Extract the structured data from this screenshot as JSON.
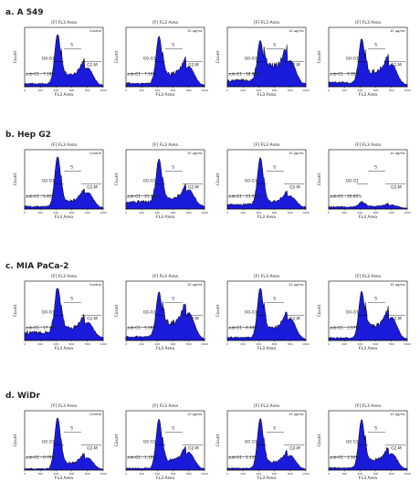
{
  "chart_data": {
    "type": "histogram",
    "panel_title": "[F] FL3 Area",
    "xlabel": "FL3 Area",
    "ylabel": "Count",
    "x_ticks": [
      0,
      200,
      400,
      600,
      800,
      1000
    ],
    "phase_labels": {
      "g0g1": "G0-G1",
      "s": "S",
      "g2m": "G2-M",
      "subg1": "sub-G1"
    },
    "rows": [
      {
        "label": "a. A 549",
        "panels": [
          {
            "condition": "Control",
            "subg1": "7.18%",
            "sub_prefix": "sub-G1 :",
            "g0_label": "G0-G1",
            "g1_peak": 1.0,
            "g2_peak": 0.34,
            "sub_level": 0.06,
            "s_level": 0.24
          },
          {
            "condition": "10 µg/mL",
            "subg1": "7.16%",
            "sub_prefix": "sub-G1 :",
            "g0_label": "G0-G1",
            "g1_peak": 0.95,
            "g2_peak": 0.36,
            "sub_level": 0.07,
            "s_level": 0.26
          },
          {
            "condition": "10 µg/mL",
            "subg1": "18.94%",
            "sub_prefix": "sub-G1 :",
            "g0_label": "G0-G1",
            "g1_peak": 0.85,
            "g2_peak": 0.46,
            "sub_level": 0.14,
            "s_level": 0.42
          },
          {
            "condition": "10 µg/mL",
            "subg1": "9.95%",
            "sub_prefix": "sub-G1 :",
            "g0_label": "G0-G1",
            "g1_peak": 0.9,
            "g2_peak": 0.4,
            "sub_level": 0.09,
            "s_level": 0.3
          }
        ]
      },
      {
        "label": "b. Hep G2",
        "panels": [
          {
            "condition": "Control",
            "subg1": "5.42%",
            "sub_prefix": "sub-G1 :",
            "g0_label": "G0-G1",
            "g1_peak": 1.0,
            "g2_peak": 0.3,
            "sub_level": 0.05,
            "s_level": 0.16
          },
          {
            "condition": "10 µg/mL",
            "subg1": "21.74%",
            "sub_prefix": "sub-G1 :",
            "g0_label": "G0-G1",
            "g1_peak": 0.92,
            "g2_peak": 0.32,
            "sub_level": 0.16,
            "s_level": 0.18
          },
          {
            "condition": "10 µg/mL",
            "subg1": "13.70%",
            "sub_prefix": "sub-G1 :",
            "g0_label": "G0-G1",
            "g1_peak": 0.96,
            "g2_peak": 0.22,
            "sub_level": 0.1,
            "s_level": 0.14
          },
          {
            "condition": "10 µg/mL",
            "subg1": "20.08%",
            "sub_prefix": "sub-G1 :",
            "g0_label": "G0-G1",
            "g1_peak": 0.12,
            "g2_peak": 0.06,
            "sub_level": 0.04,
            "s_level": 0.04
          }
        ]
      },
      {
        "label": "c. MIA PaCa-2",
        "panels": [
          {
            "condition": "Control",
            "subg1": "17.74%",
            "sub_prefix": "sub-G1 :",
            "g0_label": "G0-G1",
            "g1_peak": 1.0,
            "g2_peak": 0.3,
            "sub_level": 0.18,
            "s_level": 0.22
          },
          {
            "condition": "10 µg/mL",
            "subg1": "5.06%",
            "sub_prefix": "sub-G1 :",
            "g0_label": "G0-G1",
            "g1_peak": 0.9,
            "g2_peak": 0.5,
            "sub_level": 0.08,
            "s_level": 0.36
          },
          {
            "condition": "10 µg/mL",
            "subg1": "4.44%",
            "sub_prefix": "sub-G1 :",
            "g0_label": "G0-G1",
            "g1_peak": 1.0,
            "g2_peak": 0.4,
            "sub_level": 0.06,
            "s_level": 0.26
          },
          {
            "condition": "10 µg/mL",
            "subg1": "3.57%",
            "sub_prefix": "sub-G1 :",
            "g0_label": "G0-G1",
            "g1_peak": 0.92,
            "g2_peak": 0.42,
            "sub_level": 0.05,
            "s_level": 0.3
          }
        ]
      },
      {
        "label": "d. WiDr",
        "panels": [
          {
            "condition": "Control",
            "subg1": "0.78%",
            "sub_prefix": "sub-G1 :",
            "g0_label": "G0 G1",
            "g1_peak": 1.0,
            "g2_peak": 0.22,
            "sub_level": 0.02,
            "s_level": 0.14
          },
          {
            "condition": "10 µg/mL",
            "subg1": "1.10%",
            "sub_prefix": "sub-G1 :",
            "g0_label": "G0 G1",
            "g1_peak": 0.96,
            "g2_peak": 0.32,
            "sub_level": 0.03,
            "s_level": 0.2
          },
          {
            "condition": "10 µg/mL",
            "subg1": "1.13%",
            "sub_prefix": "sub-G1 :",
            "g0_label": "G0 G1",
            "g1_peak": 0.98,
            "g2_peak": 0.26,
            "sub_level": 0.03,
            "s_level": 0.16
          },
          {
            "condition": "10 µg/mL",
            "subg1": "1.52%",
            "sub_prefix": "sub-G1 :",
            "g0_label": "G0 G1",
            "g1_peak": 0.96,
            "g2_peak": 0.3,
            "sub_level": 0.04,
            "s_level": 0.2
          }
        ]
      }
    ],
    "colors": {
      "fill": "#1a1adb",
      "outline": "#000000"
    }
  }
}
